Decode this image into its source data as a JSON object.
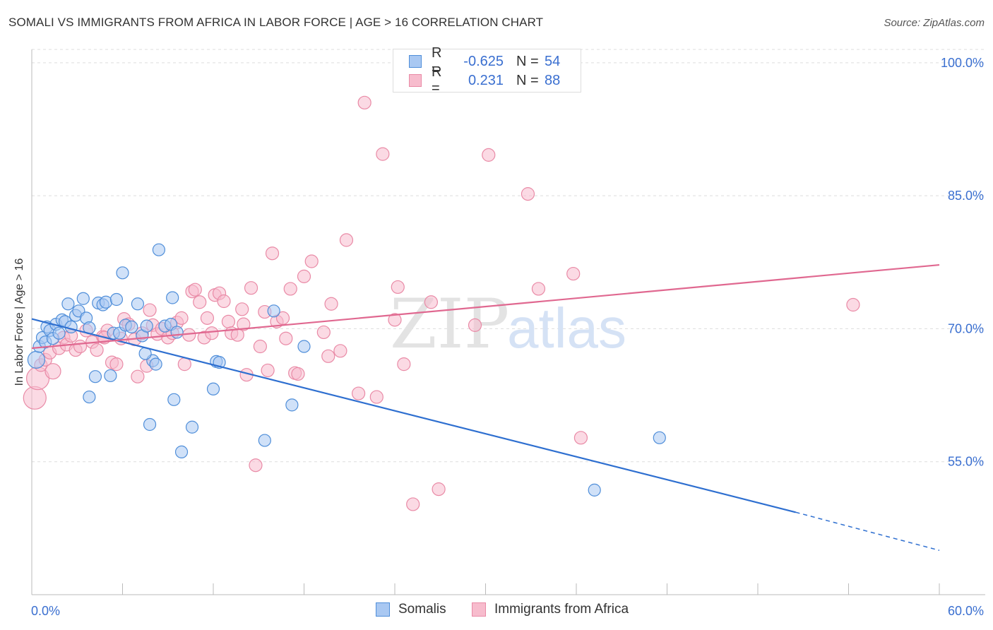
{
  "header": {
    "title": "SOMALI VS IMMIGRANTS FROM AFRICA IN LABOR FORCE | AGE > 16 CORRELATION CHART",
    "source": "Source: ZipAtlas.com"
  },
  "legend_top": {
    "rows": [
      {
        "r_label": "R =",
        "r_value": "-0.625",
        "n_label": "N =",
        "n_value": "54"
      },
      {
        "r_label": "R =",
        "r_value": "0.231",
        "n_label": "N =",
        "n_value": "88"
      }
    ]
  },
  "watermark": {
    "zip": "ZIP",
    "atlas": "atlas"
  },
  "colors": {
    "somali_fill": "#a9c8f2",
    "somali_stroke": "#4f8ed9",
    "somali_line": "#2e6fd0",
    "africa_fill": "#f7bccd",
    "africa_stroke": "#e98aa6",
    "africa_line": "#e06890",
    "tick_label": "#3a6fd0",
    "grid": "#dddddd"
  },
  "chart_data": {
    "type": "scatter",
    "title": "SOMALI VS IMMIGRANTS FROM AFRICA IN LABOR FORCE | AGE > 16 CORRELATION CHART",
    "xlabel": "",
    "ylabel": "In Labor Force | Age > 16",
    "xlim": [
      0,
      60
    ],
    "ylim": [
      40,
      101.5
    ],
    "x_tick_labels": [
      "0.0%",
      "60.0%"
    ],
    "y_ticks": [
      55,
      70,
      85,
      100
    ],
    "y_tick_labels": [
      "55.0%",
      "70.0%",
      "85.0%",
      "100.0%"
    ],
    "grid": true,
    "legend_position": "bottom",
    "series": [
      {
        "name": "Somalis",
        "r": -0.625,
        "n": 54,
        "trend": {
          "x0": 0,
          "y0": 71.1,
          "x1": 50.5,
          "y1": 49.3,
          "dash_to_x": 60,
          "dash_to_y": 45.0
        },
        "points": [
          [
            0.3,
            66.5
          ],
          [
            0.5,
            68.0
          ],
          [
            0.7,
            69.0
          ],
          [
            0.9,
            68.5
          ],
          [
            1.0,
            70.2
          ],
          [
            1.2,
            69.8
          ],
          [
            1.4,
            68.9
          ],
          [
            1.6,
            70.5
          ],
          [
            1.8,
            69.5
          ],
          [
            2.0,
            71.0
          ],
          [
            2.2,
            70.8
          ],
          [
            2.4,
            72.8
          ],
          [
            2.6,
            70.2
          ],
          [
            2.9,
            71.5
          ],
          [
            3.1,
            72.0
          ],
          [
            3.4,
            73.4
          ],
          [
            3.6,
            71.2
          ],
          [
            3.8,
            70.1
          ],
          [
            4.2,
            64.6
          ],
          [
            4.4,
            72.9
          ],
          [
            4.7,
            72.7
          ],
          [
            4.9,
            73.0
          ],
          [
            5.2,
            64.7
          ],
          [
            5.4,
            69.5
          ],
          [
            5.6,
            73.3
          ],
          [
            5.8,
            69.5
          ],
          [
            6.0,
            76.3
          ],
          [
            6.2,
            70.4
          ],
          [
            6.6,
            70.2
          ],
          [
            7.0,
            72.8
          ],
          [
            7.3,
            69.2
          ],
          [
            7.6,
            70.3
          ],
          [
            7.8,
            59.2
          ],
          [
            8.0,
            66.4
          ],
          [
            8.2,
            66.0
          ],
          [
            8.4,
            78.9
          ],
          [
            8.8,
            70.3
          ],
          [
            9.2,
            70.5
          ],
          [
            9.3,
            73.5
          ],
          [
            9.4,
            62.0
          ],
          [
            9.6,
            69.6
          ],
          [
            9.9,
            56.1
          ],
          [
            10.6,
            58.9
          ],
          [
            12.0,
            63.2
          ],
          [
            12.2,
            66.3
          ],
          [
            12.4,
            66.2
          ],
          [
            15.4,
            57.4
          ],
          [
            17.2,
            61.4
          ],
          [
            16.0,
            72.0
          ],
          [
            18.0,
            68.0
          ],
          [
            7.5,
            67.2
          ],
          [
            37.2,
            51.8
          ],
          [
            41.5,
            57.7
          ],
          [
            3.8,
            62.3
          ]
        ]
      },
      {
        "name": "Immigrants from Africa",
        "r": 0.231,
        "n": 88,
        "trend": {
          "x0": 0,
          "y0": 67.8,
          "x1": 60,
          "y1": 77.2
        },
        "points": [
          [
            0.2,
            62.2
          ],
          [
            0.4,
            64.4
          ],
          [
            0.6,
            65.9
          ],
          [
            0.9,
            66.5
          ],
          [
            1.2,
            67.3
          ],
          [
            1.4,
            65.2
          ],
          [
            1.8,
            67.8
          ],
          [
            2.1,
            69.0
          ],
          [
            2.3,
            68.2
          ],
          [
            2.6,
            69.2
          ],
          [
            2.9,
            67.6
          ],
          [
            3.2,
            68.0
          ],
          [
            3.6,
            69.8
          ],
          [
            4.0,
            68.5
          ],
          [
            4.3,
            67.6
          ],
          [
            4.7,
            69.1
          ],
          [
            5.0,
            69.8
          ],
          [
            5.3,
            66.2
          ],
          [
            5.6,
            66.0
          ],
          [
            5.9,
            68.9
          ],
          [
            6.1,
            71.1
          ],
          [
            6.4,
            70.5
          ],
          [
            6.8,
            68.8
          ],
          [
            7.0,
            64.6
          ],
          [
            7.3,
            69.5
          ],
          [
            7.6,
            65.8
          ],
          [
            7.8,
            72.1
          ],
          [
            8.0,
            70.4
          ],
          [
            8.3,
            69.4
          ],
          [
            8.6,
            70.0
          ],
          [
            9.0,
            69.0
          ],
          [
            9.3,
            69.5
          ],
          [
            9.6,
            70.7
          ],
          [
            9.9,
            71.2
          ],
          [
            10.1,
            66.0
          ],
          [
            10.4,
            69.3
          ],
          [
            10.6,
            74.2
          ],
          [
            10.8,
            74.4
          ],
          [
            11.1,
            73.0
          ],
          [
            11.4,
            69.0
          ],
          [
            11.6,
            71.2
          ],
          [
            11.9,
            69.5
          ],
          [
            12.1,
            73.8
          ],
          [
            12.4,
            74.0
          ],
          [
            12.7,
            73.1
          ],
          [
            13.0,
            70.8
          ],
          [
            13.2,
            69.5
          ],
          [
            13.6,
            69.3
          ],
          [
            13.9,
            72.2
          ],
          [
            14.2,
            64.8
          ],
          [
            14.5,
            74.6
          ],
          [
            14.8,
            54.6
          ],
          [
            15.1,
            68.0
          ],
          [
            15.4,
            71.9
          ],
          [
            15.6,
            65.3
          ],
          [
            15.9,
            78.5
          ],
          [
            16.2,
            70.8
          ],
          [
            16.6,
            71.2
          ],
          [
            16.8,
            68.9
          ],
          [
            17.1,
            74.5
          ],
          [
            17.4,
            65.0
          ],
          [
            17.6,
            64.9
          ],
          [
            18.0,
            75.9
          ],
          [
            18.5,
            77.6
          ],
          [
            19.3,
            69.6
          ],
          [
            19.6,
            66.9
          ],
          [
            19.8,
            72.8
          ],
          [
            20.4,
            67.5
          ],
          [
            20.8,
            80.0
          ],
          [
            21.6,
            62.7
          ],
          [
            22.8,
            62.3
          ],
          [
            23.2,
            89.7
          ],
          [
            22.0,
            95.5
          ],
          [
            24.0,
            71.0
          ],
          [
            24.2,
            74.7
          ],
          [
            24.6,
            66.0
          ],
          [
            25.2,
            50.2
          ],
          [
            26.4,
            73.0
          ],
          [
            26.9,
            51.9
          ],
          [
            29.3,
            70.4
          ],
          [
            30.2,
            89.6
          ],
          [
            32.8,
            85.2
          ],
          [
            33.5,
            74.5
          ],
          [
            35.8,
            76.2
          ],
          [
            36.3,
            57.7
          ],
          [
            54.3,
            72.7
          ],
          [
            14.0,
            70.5
          ],
          [
            4.8,
            69.0
          ]
        ]
      }
    ]
  },
  "legend_bottom": {
    "items": [
      "Somalis",
      "Immigrants from Africa"
    ]
  }
}
